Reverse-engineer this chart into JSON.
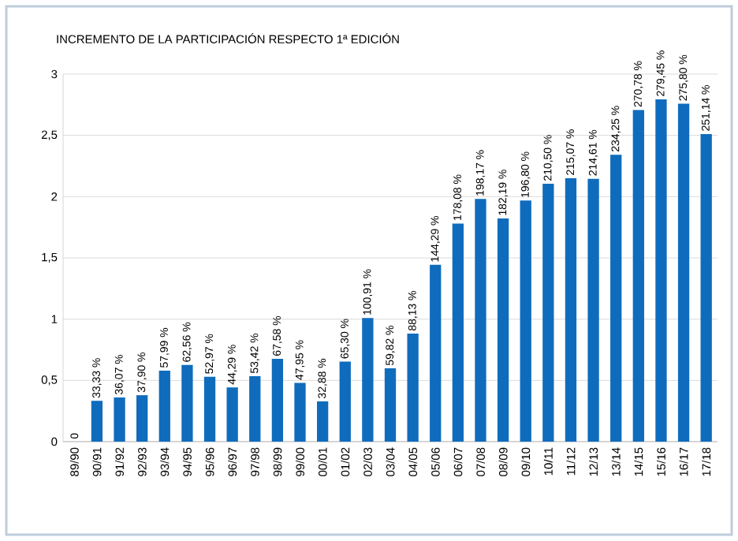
{
  "chart_data": {
    "type": "bar",
    "title": "INCREMENTO DE LA PARTICIPACIÓN RESPECTO 1ª EDICIÓN",
    "categories": [
      "89/90",
      "90/91",
      "91/92",
      "92/93",
      "93/94",
      "94/95",
      "95/96",
      "96/97",
      "97/98",
      "98/99",
      "99/00",
      "00/01",
      "01/02",
      "02/03",
      "03/04",
      "04/05",
      "05/06",
      "06/07",
      "07/08",
      "08/09",
      "09/10",
      "10/11",
      "11/12",
      "12/13",
      "13/14",
      "14/15",
      "15/16",
      "16/17",
      "17/18"
    ],
    "values": [
      0,
      0.3333,
      0.3607,
      0.379,
      0.5799,
      0.6256,
      0.5297,
      0.4429,
      0.5342,
      0.6758,
      0.4795,
      0.3288,
      0.653,
      1.0091,
      0.5982,
      0.8813,
      1.4429,
      1.7808,
      1.9817,
      1.8219,
      1.968,
      2.105,
      2.1507,
      2.1461,
      2.3425,
      2.7078,
      2.7945,
      2.758,
      2.5114
    ],
    "value_labels": [
      "0",
      "33,33 %",
      "36,07 %",
      "37,90 %",
      "57,99 %",
      "62,56 %",
      "52,97 %",
      "44,29 %",
      "53,42 %",
      "67,58 %",
      "47,95 %",
      "32,88 %",
      "65,30 %",
      "100,91 %",
      "59,82 %",
      "88,13 %",
      "144,29 %",
      "178,08 %",
      "198,17 %",
      "182,19 %",
      "196,80 %",
      "210,50 %",
      "215,07 %",
      "214,61 %",
      "234,25 %",
      "270,78 %",
      "279,45 %",
      "275,80 %",
      "251,14 %"
    ],
    "color": "#0f6cbd",
    "ylim": [
      0,
      3
    ],
    "yticks": [
      0,
      {
        "value": 0.5,
        "label": "0,5"
      },
      1,
      {
        "value": 1.5,
        "label": "1,5"
      },
      2,
      {
        "value": 2.5,
        "label": "2,5"
      },
      3
    ],
    "grid": "y"
  }
}
